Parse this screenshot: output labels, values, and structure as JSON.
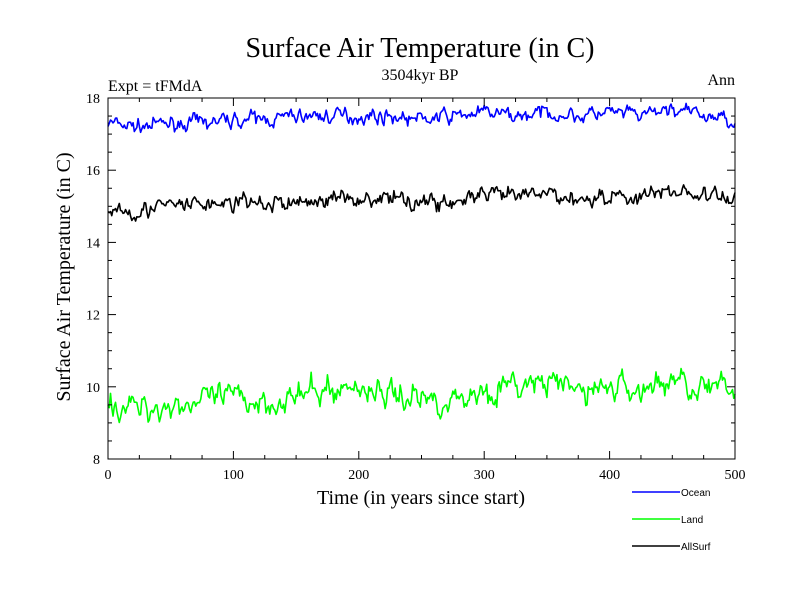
{
  "chart_data": {
    "type": "line",
    "title": "Surface Air Temperature (in C)",
    "subtitle": "3504kyr BP",
    "left_label": "Expt = tFMdA",
    "right_label": "Ann",
    "xlabel": "Time (in years since start)",
    "ylabel": "Surface Air Temperature (in C)",
    "xlim": [
      0,
      500
    ],
    "ylim": [
      8,
      18
    ],
    "x_ticks": [
      "0",
      "100",
      "200",
      "300",
      "400",
      "500"
    ],
    "y_ticks": [
      "8",
      "10",
      "12",
      "14",
      "16",
      "18"
    ],
    "grid": false,
    "legend_position": "bottom-right",
    "series": [
      {
        "name": "Ocean",
        "color": "#0000ff",
        "x": [
          0,
          25,
          50,
          75,
          100,
          125,
          150,
          175,
          200,
          225,
          250,
          275,
          300,
          325,
          350,
          375,
          400,
          425,
          450,
          475,
          500
        ],
        "y": [
          17.3,
          17.2,
          17.3,
          17.3,
          17.4,
          17.4,
          17.5,
          17.5,
          17.5,
          17.5,
          17.4,
          17.5,
          17.6,
          17.5,
          17.6,
          17.5,
          17.6,
          17.5,
          17.7,
          17.5,
          17.4
        ]
      },
      {
        "name": "Land",
        "color": "#00ff00",
        "x": [
          0,
          25,
          50,
          75,
          100,
          125,
          150,
          175,
          200,
          225,
          250,
          275,
          300,
          325,
          350,
          375,
          400,
          425,
          450,
          475,
          500
        ],
        "y": [
          9.5,
          9.4,
          9.5,
          9.6,
          9.7,
          9.6,
          9.7,
          9.9,
          10.0,
          9.8,
          9.7,
          9.6,
          9.9,
          10.0,
          10.1,
          9.9,
          10.0,
          9.9,
          10.2,
          10.0,
          9.8
        ]
      },
      {
        "name": "AllSurf",
        "color": "#000000",
        "x": [
          0,
          25,
          50,
          75,
          100,
          125,
          150,
          175,
          200,
          225,
          250,
          275,
          300,
          325,
          350,
          375,
          400,
          425,
          450,
          475,
          500
        ],
        "y": [
          14.95,
          14.9,
          15.0,
          15.05,
          15.1,
          15.05,
          15.1,
          15.2,
          15.25,
          15.2,
          15.15,
          15.1,
          15.3,
          15.25,
          15.35,
          15.2,
          15.3,
          15.25,
          15.45,
          15.3,
          15.15
        ]
      }
    ]
  }
}
